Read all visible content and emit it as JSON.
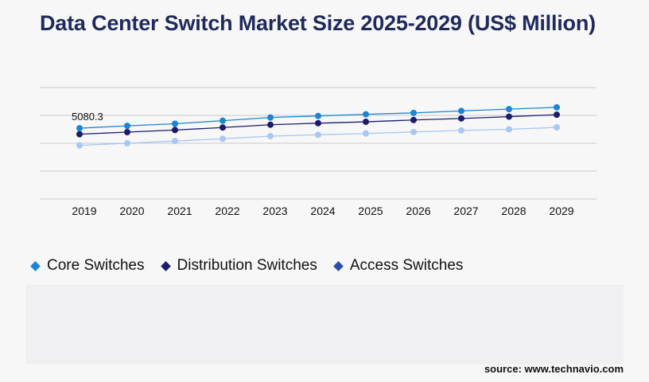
{
  "chart_data": {
    "type": "line",
    "title": "Data Center Switch Market Size 2025-2029 (US$ Million)",
    "categories": [
      "2019",
      "2020",
      "2021",
      "2022",
      "2023",
      "2024",
      "2025",
      "2026",
      "2027",
      "2028",
      "2029"
    ],
    "ylim": [
      0,
      8000
    ],
    "grid": true,
    "legend": "bottom-left",
    "annotations": [
      {
        "series": "Core Switches",
        "x": "2019",
        "text": "5080.3"
      }
    ],
    "series": [
      {
        "name": "Core Switches",
        "color": "#1a85d6",
        "values": [
          5080,
          5250,
          5400,
          5620,
          5850,
          5960,
          6080,
          6180,
          6320,
          6450,
          6580
        ]
      },
      {
        "name": "Distribution Switches",
        "color": "#1b1c6e",
        "values": [
          4650,
          4800,
          4950,
          5130,
          5330,
          5440,
          5540,
          5670,
          5780,
          5910,
          6050
        ]
      },
      {
        "name": "Access Switches",
        "color": "#a6c8f2",
        "values": [
          3850,
          4000,
          4160,
          4320,
          4510,
          4610,
          4700,
          4810,
          4920,
          5000,
          5140
        ]
      }
    ]
  },
  "legend_items": [
    {
      "label": "Core Switches",
      "color": "#1a85d6"
    },
    {
      "label": "Distribution Switches",
      "color": "#1b1c6e"
    },
    {
      "label": "Access Switches",
      "color": "#2a4fa8"
    }
  ],
  "source": "source: www.technavio.com"
}
